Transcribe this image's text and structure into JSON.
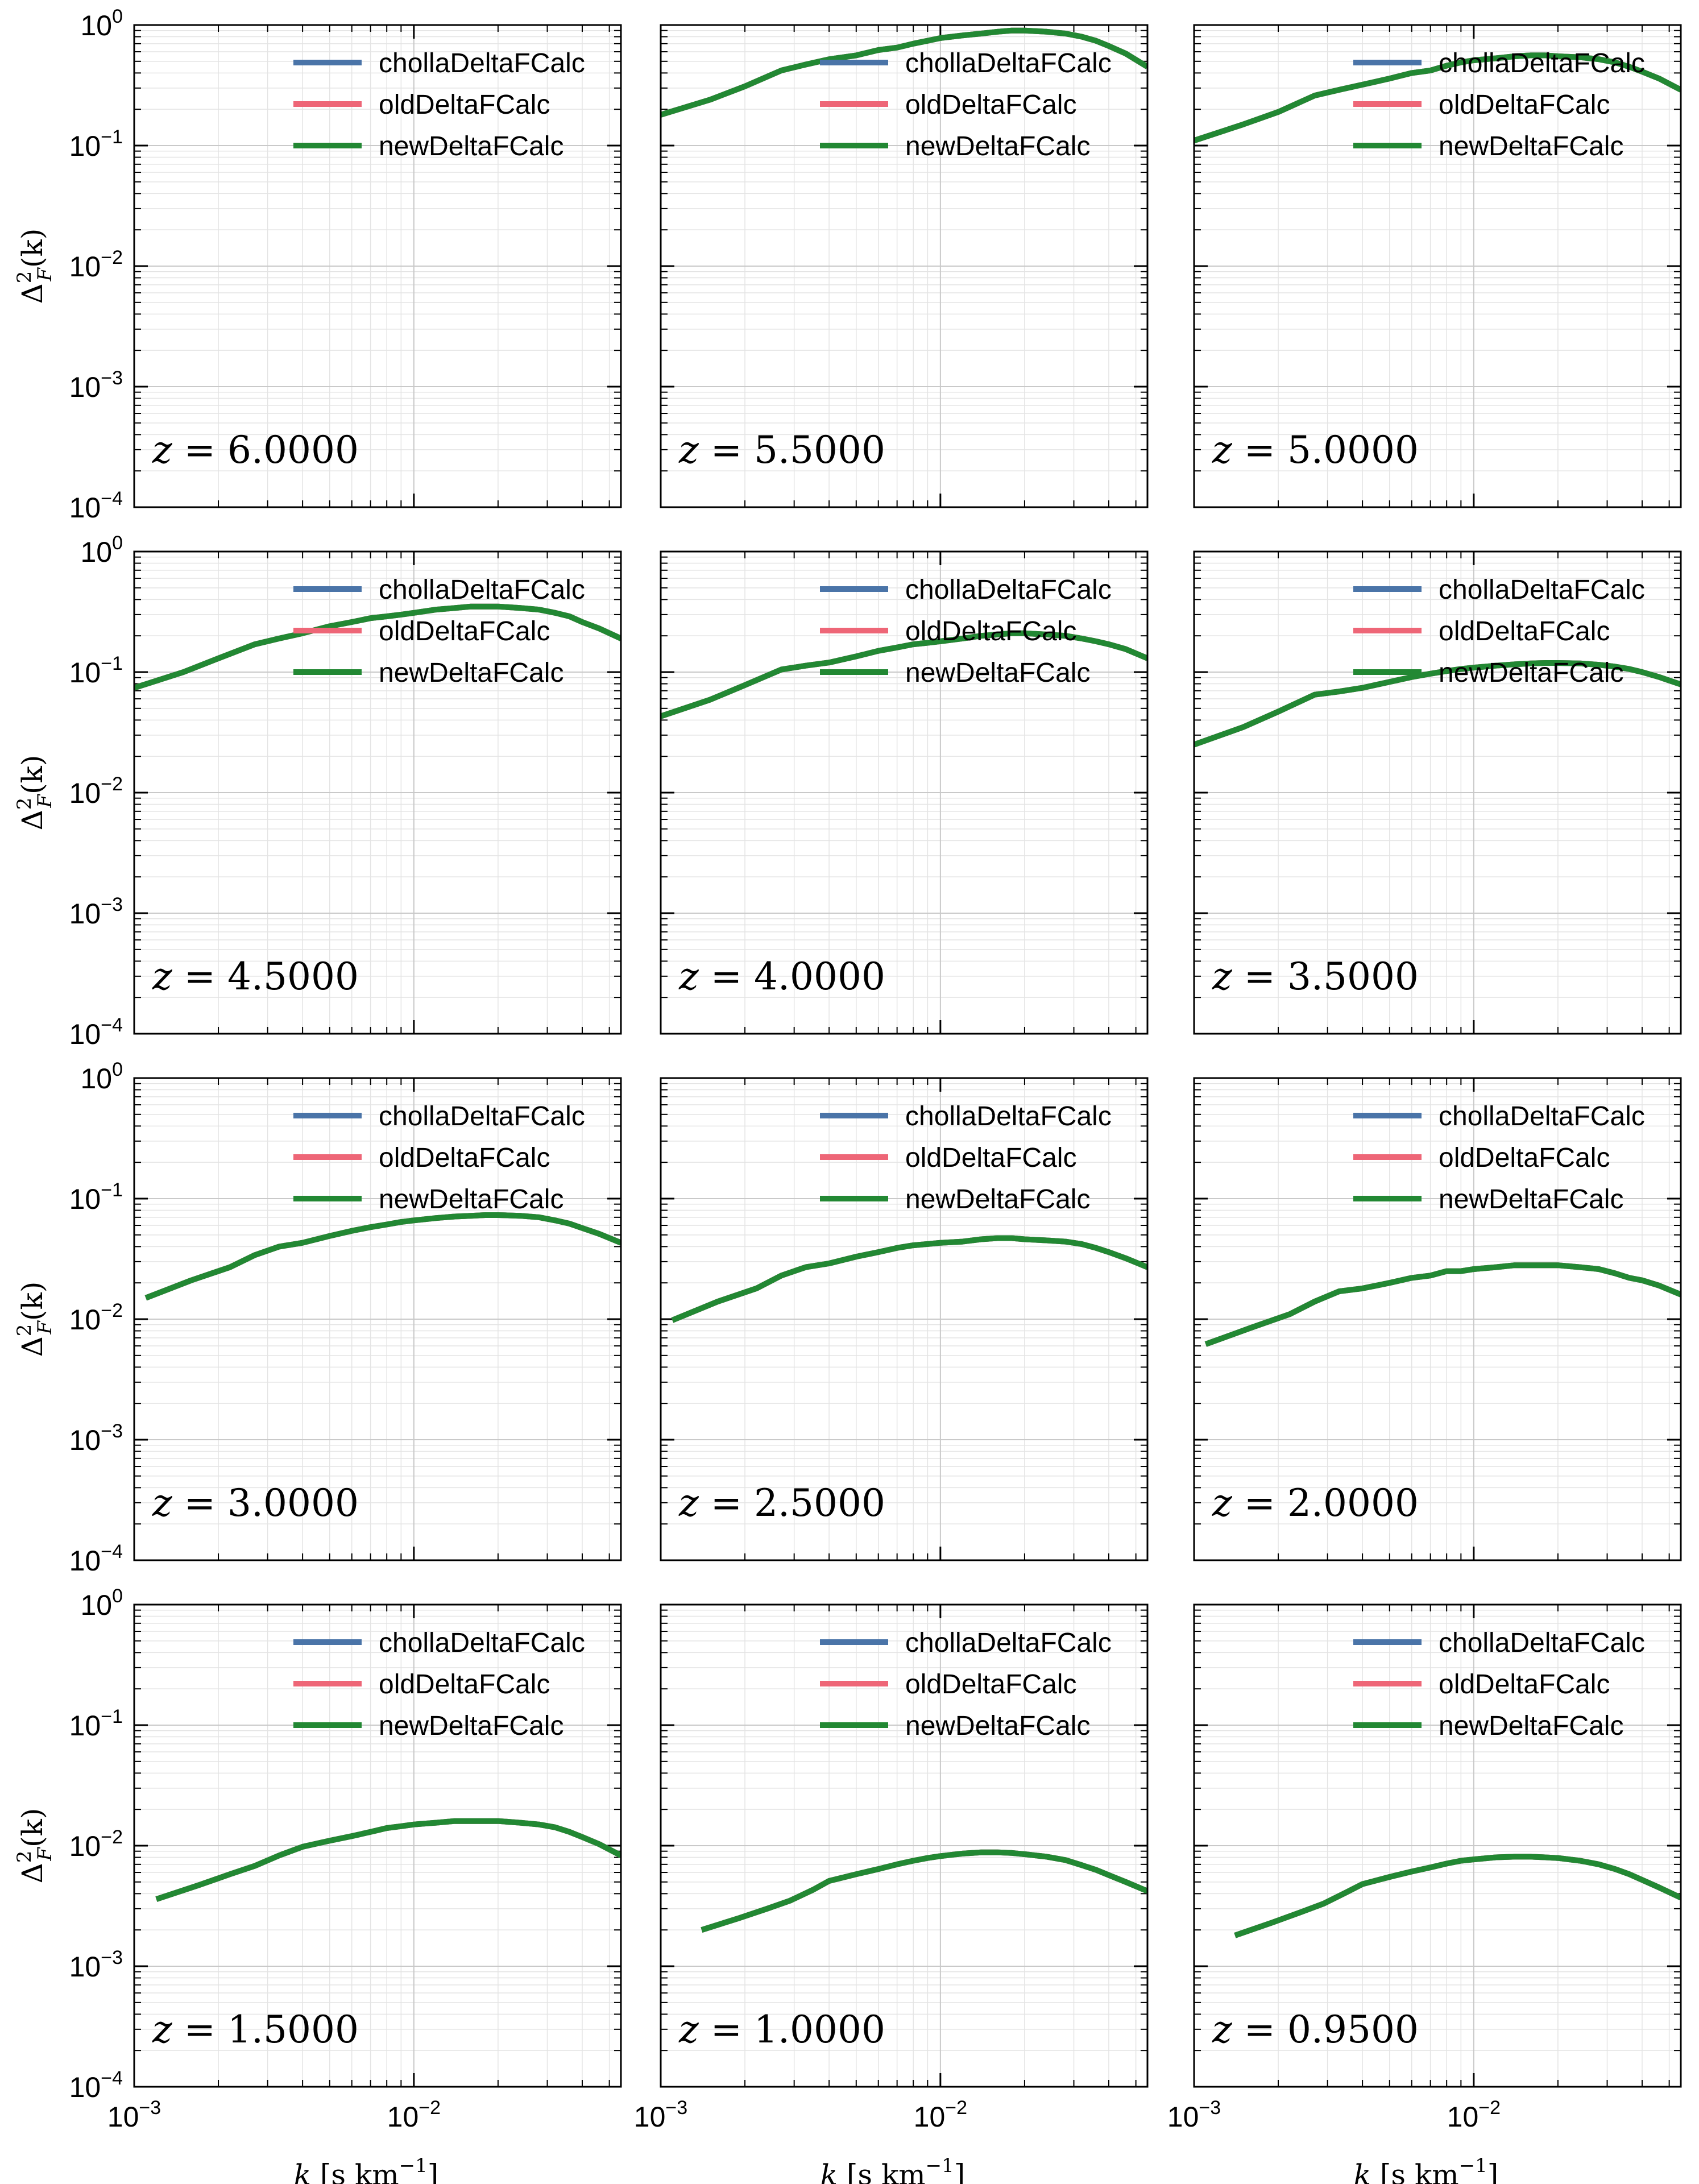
{
  "chart_data": {
    "type": "line",
    "layout": "grid",
    "rows": 4,
    "cols": 3,
    "xscale": "log",
    "yscale": "log",
    "xlim": [
      0.001,
      0.055
    ],
    "ylim": [
      0.0001,
      1.0
    ],
    "xticks": [
      {
        "value": 0.001,
        "base": "10",
        "exp": "−3"
      },
      {
        "value": 0.01,
        "base": "10",
        "exp": "−2"
      }
    ],
    "yticks": [
      {
        "value": 0.0001,
        "base": "10",
        "exp": "−4"
      },
      {
        "value": 0.001,
        "base": "10",
        "exp": "−3"
      },
      {
        "value": 0.01,
        "base": "10",
        "exp": "−2"
      },
      {
        "value": 0.1,
        "base": "10",
        "exp": "−1"
      },
      {
        "value": 1.0,
        "base": "10",
        "exp": "0"
      }
    ],
    "xlabel": {
      "var": "k",
      "unit_open": " [s km",
      "unit_exp": "−1",
      "unit_close": "]"
    },
    "ylabel": {
      "var": "Δ",
      "sup": "2",
      "sub": "F",
      "arg": "(k)"
    },
    "grid": true,
    "legend": {
      "position": "top-right",
      "entries": [
        {
          "name": "chollaDeltaFCalc",
          "color": "#4a74a8"
        },
        {
          "name": "oldDeltaFCalc",
          "color": "#ee6677"
        },
        {
          "name": "newDeltaFCalc",
          "color": "#228833"
        }
      ]
    },
    "panels": [
      {
        "z_prefix": "z",
        "z_value": "= 6.0000",
        "x": [],
        "y": []
      },
      {
        "z_prefix": "z",
        "z_value": "= 5.5000",
        "x": [
          0.001,
          0.0015,
          0.002,
          0.0027,
          0.0033,
          0.004,
          0.005,
          0.006,
          0.007,
          0.008,
          0.009,
          0.01,
          0.012,
          0.014,
          0.016,
          0.018,
          0.02,
          0.024,
          0.028,
          0.032,
          0.036,
          0.04,
          0.046,
          0.055
        ],
        "y": [
          0.18,
          0.24,
          0.31,
          0.42,
          0.47,
          0.52,
          0.56,
          0.62,
          0.65,
          0.7,
          0.74,
          0.78,
          0.82,
          0.85,
          0.88,
          0.9,
          0.9,
          0.88,
          0.85,
          0.8,
          0.74,
          0.67,
          0.58,
          0.45
        ]
      },
      {
        "z_prefix": "z",
        "z_value": "= 5.0000",
        "x": [
          0.001,
          0.0015,
          0.002,
          0.0027,
          0.0033,
          0.004,
          0.005,
          0.006,
          0.007,
          0.008,
          0.009,
          0.01,
          0.012,
          0.014,
          0.016,
          0.018,
          0.02,
          0.024,
          0.028,
          0.032,
          0.036,
          0.04,
          0.046,
          0.055
        ],
        "y": [
          0.11,
          0.15,
          0.19,
          0.26,
          0.29,
          0.32,
          0.36,
          0.4,
          0.42,
          0.46,
          0.49,
          0.51,
          0.53,
          0.55,
          0.56,
          0.56,
          0.55,
          0.54,
          0.52,
          0.49,
          0.45,
          0.41,
          0.36,
          0.29
        ]
      },
      {
        "z_prefix": "z",
        "z_value": "= 4.5000",
        "x": [
          0.001,
          0.0015,
          0.002,
          0.0027,
          0.0033,
          0.004,
          0.005,
          0.006,
          0.007,
          0.008,
          0.009,
          0.01,
          0.012,
          0.014,
          0.016,
          0.018,
          0.02,
          0.024,
          0.028,
          0.032,
          0.036,
          0.04,
          0.046,
          0.055
        ],
        "y": [
          0.074,
          0.1,
          0.13,
          0.17,
          0.19,
          0.21,
          0.24,
          0.26,
          0.28,
          0.29,
          0.3,
          0.31,
          0.33,
          0.34,
          0.35,
          0.35,
          0.35,
          0.34,
          0.33,
          0.31,
          0.29,
          0.26,
          0.23,
          0.19
        ]
      },
      {
        "z_prefix": "z",
        "z_value": "= 4.0000",
        "x": [
          0.001,
          0.0015,
          0.002,
          0.0027,
          0.0033,
          0.004,
          0.005,
          0.006,
          0.007,
          0.008,
          0.009,
          0.01,
          0.012,
          0.014,
          0.016,
          0.018,
          0.02,
          0.024,
          0.028,
          0.032,
          0.036,
          0.04,
          0.046,
          0.055
        ],
        "y": [
          0.043,
          0.059,
          0.078,
          0.105,
          0.113,
          0.12,
          0.135,
          0.15,
          0.16,
          0.17,
          0.175,
          0.18,
          0.19,
          0.2,
          0.205,
          0.21,
          0.21,
          0.205,
          0.2,
          0.19,
          0.18,
          0.17,
          0.155,
          0.13
        ]
      },
      {
        "z_prefix": "z",
        "z_value": "= 3.5000",
        "x": [
          0.001,
          0.0015,
          0.002,
          0.0027,
          0.0033,
          0.004,
          0.005,
          0.006,
          0.007,
          0.008,
          0.009,
          0.01,
          0.012,
          0.014,
          0.016,
          0.018,
          0.02,
          0.024,
          0.028,
          0.032,
          0.036,
          0.04,
          0.046,
          0.055
        ],
        "y": [
          0.025,
          0.035,
          0.047,
          0.065,
          0.069,
          0.074,
          0.083,
          0.091,
          0.097,
          0.102,
          0.106,
          0.109,
          0.113,
          0.116,
          0.118,
          0.119,
          0.119,
          0.118,
          0.115,
          0.111,
          0.106,
          0.1,
          0.091,
          0.079
        ]
      },
      {
        "z_prefix": "z",
        "z_value": "= 3.0000",
        "x": [
          0.0011,
          0.0016,
          0.0022,
          0.0027,
          0.0033,
          0.004,
          0.005,
          0.006,
          0.007,
          0.008,
          0.009,
          0.01,
          0.012,
          0.014,
          0.016,
          0.018,
          0.02,
          0.024,
          0.028,
          0.032,
          0.036,
          0.04,
          0.046,
          0.055
        ],
        "y": [
          0.015,
          0.021,
          0.027,
          0.034,
          0.04,
          0.043,
          0.049,
          0.054,
          0.058,
          0.061,
          0.064,
          0.066,
          0.069,
          0.071,
          0.072,
          0.073,
          0.073,
          0.072,
          0.07,
          0.066,
          0.062,
          0.057,
          0.051,
          0.043
        ]
      },
      {
        "z_prefix": "z",
        "z_value": "= 2.5000",
        "x": [
          0.0011,
          0.0016,
          0.0022,
          0.0027,
          0.0033,
          0.004,
          0.005,
          0.006,
          0.007,
          0.008,
          0.009,
          0.01,
          0.012,
          0.014,
          0.016,
          0.018,
          0.02,
          0.024,
          0.028,
          0.032,
          0.036,
          0.04,
          0.046,
          0.055
        ],
        "y": [
          0.0098,
          0.014,
          0.018,
          0.023,
          0.027,
          0.029,
          0.033,
          0.036,
          0.039,
          0.041,
          0.042,
          0.043,
          0.044,
          0.046,
          0.047,
          0.047,
          0.046,
          0.045,
          0.044,
          0.042,
          0.039,
          0.036,
          0.032,
          0.027
        ]
      },
      {
        "z_prefix": "z",
        "z_value": "= 2.0000",
        "x": [
          0.0011,
          0.0016,
          0.0022,
          0.0027,
          0.0033,
          0.004,
          0.005,
          0.006,
          0.007,
          0.008,
          0.009,
          0.01,
          0.012,
          0.014,
          0.016,
          0.018,
          0.02,
          0.024,
          0.028,
          0.032,
          0.036,
          0.04,
          0.046,
          0.055
        ],
        "y": [
          0.0062,
          0.0085,
          0.011,
          0.014,
          0.017,
          0.018,
          0.02,
          0.022,
          0.023,
          0.025,
          0.025,
          0.026,
          0.027,
          0.028,
          0.028,
          0.028,
          0.028,
          0.027,
          0.026,
          0.024,
          0.022,
          0.021,
          0.019,
          0.016
        ]
      },
      {
        "z_prefix": "z",
        "z_value": "= 1.5000",
        "x": [
          0.0012,
          0.0017,
          0.0022,
          0.0027,
          0.0033,
          0.004,
          0.005,
          0.006,
          0.007,
          0.008,
          0.009,
          0.01,
          0.012,
          0.014,
          0.016,
          0.018,
          0.02,
          0.024,
          0.028,
          0.032,
          0.036,
          0.04,
          0.046,
          0.055
        ],
        "y": [
          0.0036,
          0.0047,
          0.0058,
          0.0068,
          0.0083,
          0.0098,
          0.011,
          0.012,
          0.013,
          0.014,
          0.0145,
          0.015,
          0.0155,
          0.016,
          0.016,
          0.016,
          0.016,
          0.0155,
          0.015,
          0.0142,
          0.013,
          0.0118,
          0.0103,
          0.0083
        ]
      },
      {
        "z_prefix": "z",
        "z_value": "= 1.0000",
        "x": [
          0.0014,
          0.0019,
          0.0024,
          0.0029,
          0.0035,
          0.004,
          0.005,
          0.006,
          0.007,
          0.008,
          0.009,
          0.01,
          0.012,
          0.014,
          0.016,
          0.018,
          0.02,
          0.024,
          0.028,
          0.032,
          0.036,
          0.04,
          0.046,
          0.055
        ],
        "y": [
          0.002,
          0.0025,
          0.003,
          0.0035,
          0.0043,
          0.0051,
          0.0058,
          0.0064,
          0.007,
          0.0075,
          0.0079,
          0.0082,
          0.0086,
          0.0088,
          0.0088,
          0.0087,
          0.0085,
          0.0081,
          0.0076,
          0.0069,
          0.0063,
          0.0057,
          0.005,
          0.0042
        ]
      },
      {
        "z_prefix": "z",
        "z_value": "= 0.9500",
        "x": [
          0.0014,
          0.0019,
          0.0024,
          0.0029,
          0.0035,
          0.004,
          0.005,
          0.006,
          0.007,
          0.008,
          0.009,
          0.01,
          0.012,
          0.014,
          0.016,
          0.018,
          0.02,
          0.024,
          0.028,
          0.032,
          0.036,
          0.04,
          0.046,
          0.055
        ],
        "y": [
          0.0018,
          0.0023,
          0.0028,
          0.0033,
          0.0041,
          0.0048,
          0.0055,
          0.0061,
          0.0066,
          0.0071,
          0.0075,
          0.0077,
          0.008,
          0.0081,
          0.0081,
          0.008,
          0.0079,
          0.0075,
          0.007,
          0.0064,
          0.0058,
          0.0052,
          0.0045,
          0.0037
        ]
      }
    ]
  }
}
